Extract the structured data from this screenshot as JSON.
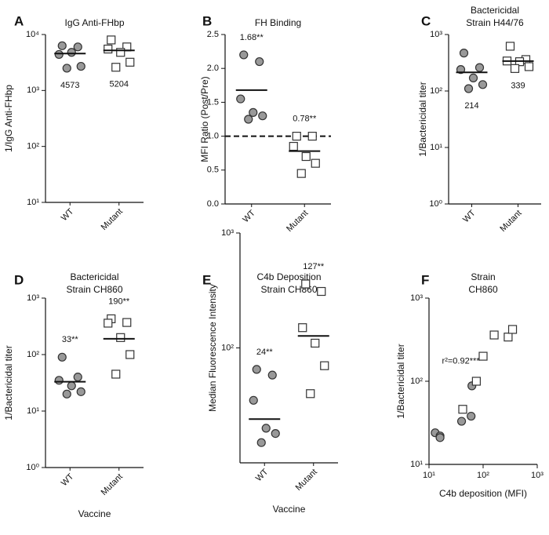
{
  "chart_data": [
    {
      "type": "strip",
      "panel_label": "A",
      "title": "IgG Anti-FHbp",
      "ylabel": "1/IgG Anti-FHbp",
      "categories": [
        "WT",
        "Mutant"
      ],
      "colors": [
        "#999999",
        "#ffffff"
      ],
      "markers": [
        "circle",
        "square"
      ],
      "values": [
        [
          6300,
          6000,
          4400,
          4800,
          2700,
          2500
        ],
        [
          8000,
          6000,
          5500,
          4800,
          3200,
          2600
        ]
      ],
      "medians": [
        4573,
        5204
      ],
      "yscale": "log",
      "ylim": [
        10,
        10000
      ],
      "yticks": [
        {
          "value": 10,
          "label": "10¹"
        },
        {
          "value": 100,
          "label": "10²"
        },
        {
          "value": 1000,
          "label": "10³"
        },
        {
          "value": 10000,
          "label": "10⁴"
        }
      ]
    },
    {
      "type": "strip",
      "panel_label": "B",
      "title": "FH Binding",
      "ylabel": "MFI Ratio (Post/Pre)",
      "categories": [
        "WT",
        "Mutant"
      ],
      "colors": [
        "#999999",
        "#ffffff"
      ],
      "markers": [
        "circle",
        "square"
      ],
      "values": [
        [
          2.2,
          2.1,
          1.55,
          1.35,
          1.3,
          1.25
        ],
        [
          1.0,
          1.0,
          0.85,
          0.7,
          0.6,
          0.45
        ]
      ],
      "medians": [
        1.68,
        0.78
      ],
      "median_labels": [
        "1.68**",
        "0.78**"
      ],
      "reference_line": 1,
      "yscale": "linear",
      "ylim": [
        0,
        2.5
      ],
      "yticks": [
        {
          "value": 0,
          "label": "0.0"
        },
        0.5,
        {
          "value": 1,
          "label": "1.0"
        },
        1.5,
        {
          "value": 2,
          "label": "2.0"
        },
        2.5
      ]
    },
    {
      "type": "strip",
      "panel_label": "C",
      "title": [
        "Bactericidal",
        "Strain H44/76"
      ],
      "ylabel": "1/Bactericidal titer",
      "categories": [
        "WT",
        "Mutant"
      ],
      "colors": [
        "#999999",
        "#ffffff"
      ],
      "markers": [
        "circle",
        "square"
      ],
      "values": [
        [
          470,
          260,
          240,
          170,
          130,
          110
        ],
        [
          620,
          360,
          340,
          330,
          270,
          250
        ]
      ],
      "medians": [
        214,
        339
      ],
      "yscale": "log",
      "ylim": [
        1,
        1000
      ],
      "yticks": [
        {
          "value": 1,
          "label": "10⁰"
        },
        {
          "value": 10,
          "label": "10¹"
        },
        {
          "value": 100,
          "label": "10²"
        },
        {
          "value": 1000,
          "label": "10³"
        }
      ]
    },
    {
      "type": "strip",
      "panel_label": "D",
      "title": [
        "Bactericidal",
        "Strain CH860"
      ],
      "ylabel": "1/Bactericidal titer",
      "xlabel": "Vaccine",
      "categories": [
        "WT",
        "Mutant"
      ],
      "colors": [
        "#999999",
        "#ffffff"
      ],
      "markers": [
        "circle",
        "square"
      ],
      "values": [
        [
          90,
          40,
          35,
          28,
          22,
          20
        ],
        [
          430,
          370,
          360,
          200,
          100,
          45
        ]
      ],
      "medians": [
        33,
        190
      ],
      "median_labels": [
        "33**",
        "190**"
      ],
      "yscale": "log",
      "ylim": [
        1,
        1000
      ],
      "yticks": [
        {
          "value": 1,
          "label": "10⁰"
        },
        {
          "value": 10,
          "label": "10¹"
        },
        {
          "value": 100,
          "label": "10²"
        },
        {
          "value": 1000,
          "label": "10³"
        }
      ]
    },
    {
      "type": "strip",
      "panel_label": "E",
      "title": [
        "C4b Deposition",
        "Strain CH860"
      ],
      "ylabel": "Median Fluorescence Intensity",
      "xlabel": "Vaccine",
      "categories": [
        "WT",
        "Mutant"
      ],
      "colors": [
        "#999999",
        "#ffffff"
      ],
      "markers": [
        "circle",
        "square"
      ],
      "values": [
        [
          65,
          58,
          35,
          20,
          18,
          15
        ],
        [
          360,
          310,
          150,
          110,
          70,
          40
        ]
      ],
      "medians": [
        24,
        127
      ],
      "median_labels": [
        "24**",
        "127**"
      ],
      "yscale": "log",
      "ylim": [
        10,
        1000
      ],
      "yticks": [
        {
          "value": 100,
          "label": "10²"
        },
        {
          "value": 1000,
          "label": "10³"
        }
      ]
    },
    {
      "type": "scatter",
      "panel_label": "F",
      "title": [
        "Strain",
        "CH860"
      ],
      "ylabel": "1/Bactericidal titer",
      "xlabel": "C4b deposition (MFI)",
      "annotation": "r²=0.92***",
      "series": [
        {
          "color": "#999999",
          "marker": "circle",
          "x": [
            13,
            16,
            16,
            40,
            60,
            62
          ],
          "values": [
            24,
            22,
            21,
            33,
            38,
            88
          ]
        },
        {
          "color": "#ffffff",
          "marker": "square",
          "x": [
            42,
            75,
            100,
            160,
            290,
            350
          ],
          "values": [
            46,
            100,
            200,
            360,
            340,
            420
          ]
        }
      ],
      "xscale": "log",
      "yscale": "log",
      "xlim": [
        10,
        1000
      ],
      "ylim": [
        10,
        1000
      ],
      "xticks": [
        {
          "value": 10,
          "label": "10¹"
        },
        {
          "value": 100,
          "label": "10²"
        },
        {
          "value": 1000,
          "label": "10³"
        }
      ],
      "yticks": [
        {
          "value": 10,
          "label": "10¹"
        },
        {
          "value": 100,
          "label": "10²"
        },
        {
          "value": 1000,
          "label": "10³"
        }
      ]
    }
  ]
}
